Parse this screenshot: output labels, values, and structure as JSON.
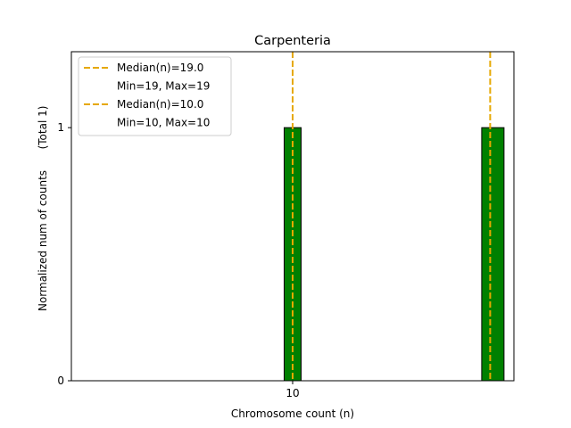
{
  "chart_data": {
    "type": "bar",
    "title": "Carpenteria",
    "xlabel": "Chromosome count (n)",
    "ylabel": "Normalized num of counts",
    "ylabel_note": "(Total 1)",
    "ylim": [
      0,
      1.3
    ],
    "y_ticks": [
      0,
      1
    ],
    "x_ticks": [
      10
    ],
    "x_ticks_positions": [
      10
    ],
    "xlim": [
      0,
      20
    ],
    "bars": [
      {
        "x": 10,
        "value": 1,
        "color": "#008000"
      },
      {
        "x": 19,
        "value": 1,
        "color": "#008000"
      }
    ],
    "median_lines": [
      {
        "x": 19.0,
        "color": "#e6a800"
      },
      {
        "x": 10.0,
        "color": "#e6a800"
      }
    ],
    "legend": {
      "placement": "top-left",
      "entries": [
        {
          "label": "Median(n)=19.0",
          "marker": "dashed-line",
          "color": "#e6a800"
        },
        {
          "label": "Min=19, Max=19",
          "marker": "none"
        },
        {
          "label": "Median(n)=10.0",
          "marker": "dashed-line",
          "color": "#e6a800"
        },
        {
          "label": "Min=10, Max=10",
          "marker": "none"
        }
      ]
    }
  }
}
